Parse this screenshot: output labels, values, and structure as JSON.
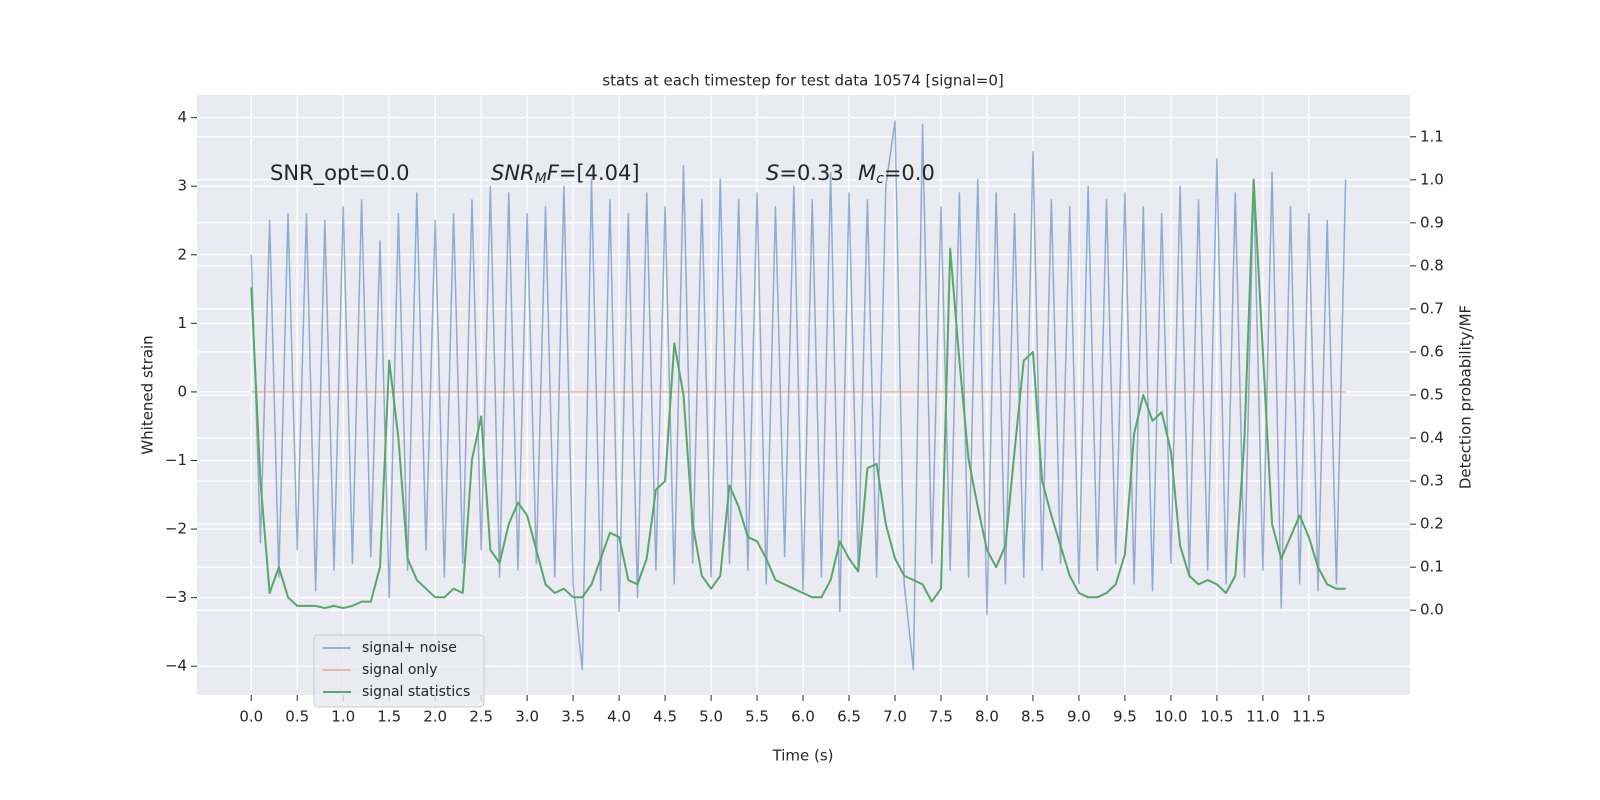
{
  "chart_data": {
    "type": "line",
    "title": "stats at each timestep for test data 10574 [signal=0]",
    "x_label": "Time (s)",
    "y_label": "Whitened strain",
    "y2_label": "Detection probability/MF",
    "annotations": [
      [
        {
          "text": "SNR_opt=0.0"
        }
      ],
      [
        {
          "text": "SNR",
          "italic": true
        },
        {
          "text": "M",
          "italic": true,
          "sub": true
        },
        {
          "text": "F",
          "italic": true
        },
        {
          "text": "=[4.04]"
        }
      ],
      [
        {
          "text": "S",
          "italic": true
        },
        {
          "text": "=0.33"
        }
      ],
      [
        {
          "text": "M",
          "italic": true
        },
        {
          "text": "c",
          "italic": true,
          "sub": true
        },
        {
          "text": "=0.0"
        }
      ]
    ],
    "x": [
      0.0,
      0.1,
      0.2,
      0.3,
      0.4,
      0.5,
      0.6,
      0.7,
      0.8,
      0.9,
      1.0,
      1.1,
      1.2,
      1.3,
      1.4,
      1.5,
      1.6,
      1.7,
      1.8,
      1.9,
      2.0,
      2.1,
      2.2,
      2.3,
      2.4,
      2.5,
      2.6,
      2.7,
      2.8,
      2.9,
      3.0,
      3.1,
      3.2,
      3.3,
      3.4,
      3.5,
      3.6,
      3.7,
      3.8,
      3.9,
      4.0,
      4.1,
      4.2,
      4.3,
      4.4,
      4.5,
      4.6,
      4.7,
      4.8,
      4.9,
      5.0,
      5.1,
      5.2,
      5.3,
      5.4,
      5.5,
      5.6,
      5.7,
      5.8,
      5.9,
      6.0,
      6.1,
      6.2,
      6.3,
      6.4,
      6.5,
      6.6,
      6.7,
      6.8,
      6.9,
      7.0,
      7.1,
      7.2,
      7.3,
      7.4,
      7.5,
      7.6,
      7.7,
      7.8,
      7.9,
      8.0,
      8.1,
      8.2,
      8.3,
      8.4,
      8.5,
      8.6,
      8.7,
      8.8,
      8.9,
      9.0,
      9.1,
      9.2,
      9.3,
      9.4,
      9.5,
      9.6,
      9.7,
      9.8,
      9.9,
      10.0,
      10.1,
      10.2,
      10.3,
      10.4,
      10.5,
      10.6,
      10.7,
      10.8,
      10.9,
      11.0,
      11.1,
      11.2,
      11.3,
      11.4,
      11.5,
      11.6,
      11.7,
      11.8,
      11.9
    ],
    "series": [
      {
        "name": "signal+ noise",
        "color": "#4c72b0",
        "values": [
          2.0,
          -2.2,
          2.5,
          -2.7,
          2.6,
          -2.3,
          2.6,
          -2.9,
          2.5,
          -2.6,
          2.7,
          -2.5,
          2.8,
          -2.4,
          2.2,
          -3.0,
          2.6,
          -2.6,
          2.9,
          -2.3,
          2.5,
          -2.7,
          2.6,
          -2.5,
          2.8,
          -2.3,
          3.0,
          -2.7,
          2.9,
          -2.6,
          2.6,
          -2.5,
          2.7,
          -2.7,
          3.0,
          -2.8,
          -4.05,
          3.1,
          -2.9,
          2.8,
          -3.2,
          2.6,
          -3.0,
          2.9,
          -2.6,
          2.7,
          -2.8,
          3.3,
          -2.5,
          2.8,
          -2.7,
          3.1,
          -2.5,
          2.8,
          -2.6,
          2.9,
          -2.8,
          2.7,
          -2.4,
          3.0,
          -2.9,
          2.8,
          -2.7,
          3.2,
          -3.2,
          2.9,
          -2.6,
          2.8,
          -2.7,
          3.0,
          3.95,
          -2.8,
          -4.05,
          3.9,
          -2.5,
          2.7,
          -2.6,
          2.9,
          -2.7,
          3.1,
          -3.25,
          2.9,
          -2.8,
          2.6,
          -2.7,
          3.5,
          -2.6,
          2.8,
          -2.5,
          2.7,
          -2.8,
          3.0,
          -2.6,
          2.8,
          -2.5,
          2.9,
          -2.8,
          2.7,
          -2.9,
          2.6,
          -2.5,
          3.0,
          -2.7,
          2.8,
          -2.6,
          3.4,
          -2.8,
          2.9,
          -2.7,
          3.1,
          -2.6,
          3.2,
          -3.15,
          2.7,
          -2.8,
          2.6,
          -2.9,
          2.5,
          -2.8,
          3.1
        ]
      },
      {
        "name": "signal only",
        "color": "#dd8452",
        "x": [
          0.0,
          11.9
        ],
        "values": [
          0,
          0
        ]
      },
      {
        "name": "signal statistics",
        "color": "#55a868",
        "axis": "y2",
        "values": [
          0.75,
          0.3,
          0.04,
          0.1,
          0.03,
          0.01,
          0.01,
          0.01,
          0.005,
          0.01,
          0.005,
          0.01,
          0.02,
          0.02,
          0.1,
          0.58,
          0.4,
          0.12,
          0.07,
          0.05,
          0.03,
          0.03,
          0.05,
          0.04,
          0.35,
          0.45,
          0.14,
          0.11,
          0.2,
          0.25,
          0.22,
          0.14,
          0.06,
          0.04,
          0.05,
          0.03,
          0.03,
          0.06,
          0.12,
          0.18,
          0.17,
          0.07,
          0.06,
          0.12,
          0.28,
          0.3,
          0.62,
          0.5,
          0.2,
          0.08,
          0.05,
          0.08,
          0.29,
          0.24,
          0.17,
          0.16,
          0.12,
          0.07,
          0.06,
          0.05,
          0.04,
          0.03,
          0.03,
          0.07,
          0.16,
          0.12,
          0.09,
          0.33,
          0.34,
          0.2,
          0.12,
          0.08,
          0.07,
          0.06,
          0.02,
          0.05,
          0.84,
          0.58,
          0.35,
          0.24,
          0.14,
          0.1,
          0.15,
          0.37,
          0.58,
          0.6,
          0.3,
          0.22,
          0.15,
          0.08,
          0.04,
          0.03,
          0.03,
          0.04,
          0.06,
          0.13,
          0.41,
          0.5,
          0.44,
          0.46,
          0.37,
          0.15,
          0.08,
          0.06,
          0.07,
          0.06,
          0.04,
          0.08,
          0.4,
          1.0,
          0.6,
          0.2,
          0.12,
          0.17,
          0.22,
          0.17,
          0.1,
          0.06,
          0.05,
          0.05
        ]
      }
    ],
    "xlim": [
      -0.59,
      12.6
    ],
    "ylim": [
      -4.42,
      4.33
    ],
    "y2lim": [
      -0.197,
      1.197
    ],
    "xticks": [
      {
        "value": 0,
        "label": "0.0"
      },
      {
        "value": 0.5,
        "label": "0.5"
      },
      {
        "value": 1,
        "label": "1.0"
      },
      {
        "value": 1.5,
        "label": "1.5"
      },
      {
        "value": 2,
        "label": "2.0"
      },
      {
        "value": 2.5,
        "label": "2.5"
      },
      {
        "value": 3,
        "label": "3.0"
      },
      {
        "value": 3.5,
        "label": "3.5"
      },
      {
        "value": 4,
        "label": "4.0"
      },
      {
        "value": 4.5,
        "label": "4.5"
      },
      {
        "value": 5,
        "label": "5.0"
      },
      {
        "value": 5.5,
        "label": "5.5"
      },
      {
        "value": 6,
        "label": "6.0"
      },
      {
        "value": 6.5,
        "label": "6.5"
      },
      {
        "value": 7,
        "label": "7.0"
      },
      {
        "value": 7.5,
        "label": "7.5"
      },
      {
        "value": 8,
        "label": "8.0"
      },
      {
        "value": 8.5,
        "label": "8.5"
      },
      {
        "value": 9,
        "label": "9.0"
      },
      {
        "value": 9.5,
        "label": "9.5"
      },
      {
        "value": 10,
        "label": "10.0"
      },
      {
        "value": 10.5,
        "label": "10.5"
      },
      {
        "value": 11,
        "label": "11.0"
      },
      {
        "value": 11.5,
        "label": "11.5"
      }
    ],
    "yticks": [
      {
        "value": -4,
        "label": "−4"
      },
      {
        "value": -3,
        "label": "−3"
      },
      {
        "value": -2,
        "label": "−2"
      },
      {
        "value": -1,
        "label": "−1"
      },
      0,
      1,
      2,
      3,
      4
    ],
    "y2ticks": [
      {
        "value": 0,
        "label": "0.0"
      },
      {
        "value": 0.1,
        "label": "0.1"
      },
      {
        "value": 0.2,
        "label": "0.2"
      },
      {
        "value": 0.3,
        "label": "0.3"
      },
      {
        "value": 0.4,
        "label": "0.4"
      },
      {
        "value": 0.5,
        "label": "0.5"
      },
      {
        "value": 0.6,
        "label": "0.6"
      },
      {
        "value": 0.7,
        "label": "0.7"
      },
      {
        "value": 0.8,
        "label": "0.8"
      },
      {
        "value": 0.9,
        "label": "0.9"
      },
      {
        "value": 1,
        "label": "1.0"
      },
      {
        "value": 1.1,
        "label": "1.1"
      }
    ],
    "grid": true,
    "legend": "lower left"
  }
}
